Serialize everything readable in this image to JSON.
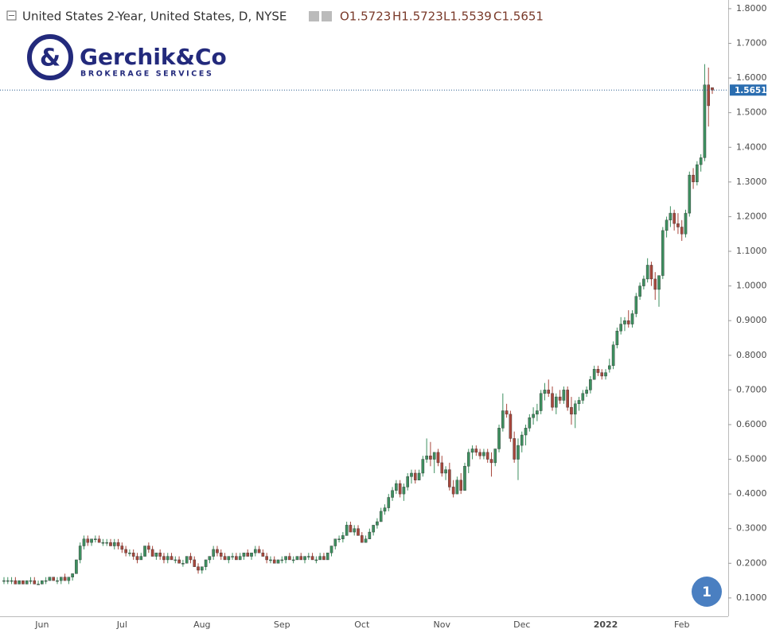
{
  "chart_data": {
    "type": "candlestick",
    "title": "United States 2-Year, United States, D, NYSE",
    "ohlc_labels": [
      "O1.5723",
      "H1.5723",
      "L1.5539",
      "C1.5651"
    ],
    "logo": {
      "name": "Gerchik&Co",
      "tagline": "BROKERAGE SERVICES"
    },
    "badge": "1",
    "up_color": "#3d8f5f",
    "down_color": "#a8473c",
    "ylim": [
      0.047,
      1.825
    ],
    "yticks": [
      {
        "value": 0.1,
        "label": "0.1000"
      },
      {
        "value": 0.2,
        "label": "0.2000"
      },
      {
        "value": 0.3,
        "label": "0.3000"
      },
      {
        "value": 0.4,
        "label": "0.4000"
      },
      {
        "value": 0.5,
        "label": "0.5000"
      },
      {
        "value": 0.6,
        "label": "0.6000"
      },
      {
        "value": 0.7,
        "label": "0.7000"
      },
      {
        "value": 0.8,
        "label": "0.8000"
      },
      {
        "value": 0.9,
        "label": "0.9000"
      },
      {
        "value": 1.0,
        "label": "1.0000"
      },
      {
        "value": 1.1,
        "label": "1.1000"
      },
      {
        "value": 1.2,
        "label": "1.2000"
      },
      {
        "value": 1.3,
        "label": "1.3000"
      },
      {
        "value": 1.4,
        "label": "1.4000"
      },
      {
        "value": 1.5,
        "label": "1.5000"
      },
      {
        "value": 1.6,
        "label": "1.6000"
      },
      {
        "value": 1.7,
        "label": "1.7000"
      },
      {
        "value": 1.8,
        "label": "1.8000"
      }
    ],
    "last_price": 1.5651,
    "categories": [
      null,
      null,
      null,
      null,
      null,
      null,
      null,
      null,
      null,
      null,
      "Jun",
      null,
      null,
      null,
      null,
      null,
      null,
      null,
      null,
      null,
      null,
      null,
      null,
      null,
      null,
      null,
      null,
      null,
      null,
      null,
      null,
      "Jul",
      null,
      null,
      null,
      null,
      null,
      null,
      null,
      null,
      null,
      null,
      null,
      null,
      null,
      null,
      null,
      null,
      null,
      null,
      null,
      null,
      "Aug",
      null,
      null,
      null,
      null,
      null,
      null,
      null,
      null,
      null,
      null,
      null,
      null,
      null,
      null,
      null,
      null,
      null,
      null,
      null,
      null,
      "Sep",
      null,
      null,
      null,
      null,
      null,
      null,
      null,
      null,
      null,
      null,
      null,
      null,
      null,
      null,
      null,
      null,
      null,
      null,
      null,
      null,
      "Oct",
      null,
      null,
      null,
      null,
      null,
      null,
      null,
      null,
      null,
      null,
      null,
      null,
      null,
      null,
      null,
      null,
      null,
      null,
      null,
      null,
      "Nov",
      null,
      null,
      null,
      null,
      null,
      null,
      null,
      null,
      null,
      null,
      null,
      null,
      null,
      null,
      null,
      null,
      null,
      null,
      null,
      null,
      "Dec",
      null,
      null,
      null,
      null,
      null,
      null,
      null,
      null,
      null,
      null,
      null,
      null,
      null,
      null,
      null,
      null,
      null,
      null,
      null,
      null,
      null,
      "2022",
      null,
      null,
      null,
      null,
      null,
      null,
      null,
      null,
      null,
      null,
      null,
      null,
      null,
      null,
      null,
      null,
      null,
      null,
      null,
      "Feb",
      null,
      null,
      null,
      null,
      null,
      null,
      null,
      null
    ],
    "candles": [
      [
        0.15,
        0.16,
        0.14,
        0.15
      ],
      [
        0.15,
        0.16,
        0.14,
        0.15
      ],
      [
        0.15,
        0.16,
        0.14,
        0.15
      ],
      [
        0.15,
        0.16,
        0.14,
        0.14
      ],
      [
        0.14,
        0.15,
        0.14,
        0.15
      ],
      [
        0.15,
        0.15,
        0.14,
        0.14
      ],
      [
        0.14,
        0.15,
        0.14,
        0.15
      ],
      [
        0.15,
        0.16,
        0.14,
        0.15
      ],
      [
        0.15,
        0.16,
        0.14,
        0.14
      ],
      [
        0.14,
        0.15,
        0.14,
        0.14
      ],
      [
        0.14,
        0.15,
        0.14,
        0.15
      ],
      [
        0.15,
        0.16,
        0.14,
        0.15
      ],
      [
        0.15,
        0.16,
        0.15,
        0.16
      ],
      [
        0.16,
        0.16,
        0.15,
        0.15
      ],
      [
        0.15,
        0.16,
        0.14,
        0.15
      ],
      [
        0.15,
        0.16,
        0.14,
        0.16
      ],
      [
        0.16,
        0.17,
        0.15,
        0.15
      ],
      [
        0.15,
        0.16,
        0.14,
        0.16
      ],
      [
        0.16,
        0.17,
        0.15,
        0.17
      ],
      [
        0.17,
        0.21,
        0.17,
        0.21
      ],
      [
        0.21,
        0.26,
        0.2,
        0.25
      ],
      [
        0.25,
        0.28,
        0.24,
        0.27
      ],
      [
        0.27,
        0.28,
        0.25,
        0.26
      ],
      [
        0.26,
        0.27,
        0.25,
        0.27
      ],
      [
        0.27,
        0.28,
        0.26,
        0.27
      ],
      [
        0.27,
        0.28,
        0.26,
        0.26
      ],
      [
        0.26,
        0.27,
        0.25,
        0.26
      ],
      [
        0.26,
        0.27,
        0.25,
        0.26
      ],
      [
        0.26,
        0.27,
        0.25,
        0.25
      ],
      [
        0.25,
        0.27,
        0.24,
        0.26
      ],
      [
        0.26,
        0.27,
        0.24,
        0.25
      ],
      [
        0.25,
        0.26,
        0.23,
        0.24
      ],
      [
        0.24,
        0.25,
        0.22,
        0.23
      ],
      [
        0.23,
        0.24,
        0.22,
        0.23
      ],
      [
        0.23,
        0.24,
        0.21,
        0.22
      ],
      [
        0.22,
        0.23,
        0.2,
        0.21
      ],
      [
        0.21,
        0.23,
        0.21,
        0.22
      ],
      [
        0.22,
        0.25,
        0.22,
        0.25
      ],
      [
        0.25,
        0.26,
        0.23,
        0.24
      ],
      [
        0.24,
        0.25,
        0.22,
        0.22
      ],
      [
        0.22,
        0.23,
        0.21,
        0.23
      ],
      [
        0.23,
        0.24,
        0.21,
        0.22
      ],
      [
        0.22,
        0.23,
        0.2,
        0.21
      ],
      [
        0.21,
        0.23,
        0.2,
        0.22
      ],
      [
        0.22,
        0.23,
        0.21,
        0.21
      ],
      [
        0.21,
        0.22,
        0.2,
        0.21
      ],
      [
        0.21,
        0.22,
        0.2,
        0.2
      ],
      [
        0.2,
        0.21,
        0.19,
        0.2
      ],
      [
        0.2,
        0.22,
        0.2,
        0.22
      ],
      [
        0.22,
        0.23,
        0.2,
        0.21
      ],
      [
        0.21,
        0.22,
        0.19,
        0.19
      ],
      [
        0.19,
        0.2,
        0.17,
        0.18
      ],
      [
        0.18,
        0.19,
        0.17,
        0.19
      ],
      [
        0.19,
        0.21,
        0.18,
        0.21
      ],
      [
        0.21,
        0.22,
        0.2,
        0.22
      ],
      [
        0.22,
        0.25,
        0.21,
        0.24
      ],
      [
        0.24,
        0.25,
        0.22,
        0.23
      ],
      [
        0.23,
        0.24,
        0.21,
        0.22
      ],
      [
        0.22,
        0.23,
        0.21,
        0.21
      ],
      [
        0.21,
        0.22,
        0.2,
        0.22
      ],
      [
        0.22,
        0.23,
        0.21,
        0.22
      ],
      [
        0.22,
        0.23,
        0.21,
        0.21
      ],
      [
        0.21,
        0.23,
        0.21,
        0.22
      ],
      [
        0.22,
        0.23,
        0.21,
        0.23
      ],
      [
        0.23,
        0.24,
        0.22,
        0.22
      ],
      [
        0.22,
        0.23,
        0.21,
        0.23
      ],
      [
        0.23,
        0.25,
        0.22,
        0.24
      ],
      [
        0.24,
        0.25,
        0.23,
        0.23
      ],
      [
        0.23,
        0.24,
        0.22,
        0.22
      ],
      [
        0.22,
        0.23,
        0.2,
        0.21
      ],
      [
        0.21,
        0.22,
        0.2,
        0.21
      ],
      [
        0.21,
        0.22,
        0.2,
        0.2
      ],
      [
        0.2,
        0.21,
        0.2,
        0.21
      ],
      [
        0.21,
        0.22,
        0.2,
        0.21
      ],
      [
        0.21,
        0.22,
        0.2,
        0.22
      ],
      [
        0.22,
        0.23,
        0.21,
        0.21
      ],
      [
        0.21,
        0.22,
        0.2,
        0.21
      ],
      [
        0.21,
        0.22,
        0.21,
        0.22
      ],
      [
        0.22,
        0.23,
        0.21,
        0.21
      ],
      [
        0.21,
        0.22,
        0.2,
        0.22
      ],
      [
        0.22,
        0.23,
        0.21,
        0.22
      ],
      [
        0.22,
        0.23,
        0.21,
        0.21
      ],
      [
        0.21,
        0.22,
        0.2,
        0.21
      ],
      [
        0.21,
        0.23,
        0.21,
        0.22
      ],
      [
        0.22,
        0.23,
        0.21,
        0.21
      ],
      [
        0.21,
        0.23,
        0.21,
        0.23
      ],
      [
        0.23,
        0.25,
        0.22,
        0.25
      ],
      [
        0.25,
        0.27,
        0.24,
        0.27
      ],
      [
        0.27,
        0.28,
        0.26,
        0.27
      ],
      [
        0.27,
        0.29,
        0.26,
        0.28
      ],
      [
        0.28,
        0.32,
        0.28,
        0.31
      ],
      [
        0.31,
        0.32,
        0.29,
        0.29
      ],
      [
        0.29,
        0.31,
        0.28,
        0.3
      ],
      [
        0.3,
        0.31,
        0.28,
        0.28
      ],
      [
        0.28,
        0.29,
        0.26,
        0.26
      ],
      [
        0.26,
        0.28,
        0.26,
        0.27
      ],
      [
        0.27,
        0.3,
        0.27,
        0.29
      ],
      [
        0.29,
        0.31,
        0.28,
        0.31
      ],
      [
        0.31,
        0.33,
        0.3,
        0.32
      ],
      [
        0.32,
        0.36,
        0.32,
        0.35
      ],
      [
        0.35,
        0.37,
        0.34,
        0.36
      ],
      [
        0.36,
        0.4,
        0.35,
        0.39
      ],
      [
        0.39,
        0.42,
        0.38,
        0.41
      ],
      [
        0.41,
        0.44,
        0.4,
        0.43
      ],
      [
        0.43,
        0.44,
        0.39,
        0.4
      ],
      [
        0.4,
        0.43,
        0.38,
        0.42
      ],
      [
        0.42,
        0.46,
        0.41,
        0.45
      ],
      [
        0.45,
        0.47,
        0.43,
        0.46
      ],
      [
        0.46,
        0.47,
        0.43,
        0.44
      ],
      [
        0.44,
        0.47,
        0.44,
        0.46
      ],
      [
        0.46,
        0.51,
        0.45,
        0.5
      ],
      [
        0.5,
        0.56,
        0.49,
        0.51
      ],
      [
        0.51,
        0.55,
        0.48,
        0.5
      ],
      [
        0.5,
        0.52,
        0.46,
        0.52
      ],
      [
        0.52,
        0.53,
        0.48,
        0.49
      ],
      [
        0.49,
        0.51,
        0.45,
        0.46
      ],
      [
        0.46,
        0.48,
        0.44,
        0.47
      ],
      [
        0.47,
        0.49,
        0.41,
        0.42
      ],
      [
        0.42,
        0.44,
        0.39,
        0.4
      ],
      [
        0.4,
        0.45,
        0.4,
        0.44
      ],
      [
        0.44,
        0.46,
        0.4,
        0.41
      ],
      [
        0.41,
        0.49,
        0.41,
        0.48
      ],
      [
        0.48,
        0.53,
        0.46,
        0.52
      ],
      [
        0.52,
        0.54,
        0.5,
        0.53
      ],
      [
        0.53,
        0.54,
        0.51,
        0.52
      ],
      [
        0.52,
        0.53,
        0.5,
        0.51
      ],
      [
        0.51,
        0.53,
        0.5,
        0.52
      ],
      [
        0.52,
        0.53,
        0.49,
        0.5
      ],
      [
        0.5,
        0.52,
        0.45,
        0.49
      ],
      [
        0.49,
        0.53,
        0.48,
        0.53
      ],
      [
        0.53,
        0.6,
        0.52,
        0.59
      ],
      [
        0.59,
        0.69,
        0.58,
        0.64
      ],
      [
        0.64,
        0.66,
        0.62,
        0.63
      ],
      [
        0.63,
        0.64,
        0.55,
        0.56
      ],
      [
        0.56,
        0.58,
        0.49,
        0.5
      ],
      [
        0.5,
        0.56,
        0.44,
        0.54
      ],
      [
        0.54,
        0.58,
        0.52,
        0.57
      ],
      [
        0.57,
        0.6,
        0.54,
        0.59
      ],
      [
        0.59,
        0.63,
        0.58,
        0.62
      ],
      [
        0.62,
        0.65,
        0.6,
        0.63
      ],
      [
        0.63,
        0.66,
        0.61,
        0.64
      ],
      [
        0.64,
        0.7,
        0.63,
        0.69
      ],
      [
        0.69,
        0.72,
        0.67,
        0.7
      ],
      [
        0.7,
        0.73,
        0.68,
        0.69
      ],
      [
        0.69,
        0.71,
        0.64,
        0.65
      ],
      [
        0.65,
        0.69,
        0.63,
        0.68
      ],
      [
        0.68,
        0.7,
        0.66,
        0.67
      ],
      [
        0.67,
        0.71,
        0.66,
        0.7
      ],
      [
        0.7,
        0.71,
        0.64,
        0.65
      ],
      [
        0.65,
        0.68,
        0.6,
        0.63
      ],
      [
        0.63,
        0.67,
        0.59,
        0.66
      ],
      [
        0.66,
        0.68,
        0.64,
        0.67
      ],
      [
        0.67,
        0.7,
        0.66,
        0.69
      ],
      [
        0.69,
        0.71,
        0.68,
        0.7
      ],
      [
        0.7,
        0.74,
        0.69,
        0.73
      ],
      [
        0.73,
        0.77,
        0.73,
        0.76
      ],
      [
        0.76,
        0.77,
        0.74,
        0.75
      ],
      [
        0.75,
        0.76,
        0.73,
        0.74
      ],
      [
        0.74,
        0.76,
        0.73,
        0.75
      ],
      [
        0.76,
        0.79,
        0.75,
        0.77
      ],
      [
        0.77,
        0.84,
        0.76,
        0.83
      ],
      [
        0.83,
        0.88,
        0.82,
        0.87
      ],
      [
        0.87,
        0.91,
        0.86,
        0.89
      ],
      [
        0.89,
        0.91,
        0.87,
        0.9
      ],
      [
        0.9,
        0.93,
        0.88,
        0.89
      ],
      [
        0.89,
        0.93,
        0.88,
        0.92
      ],
      [
        0.92,
        0.98,
        0.91,
        0.97
      ],
      [
        0.97,
        1.01,
        0.96,
        1.0
      ],
      [
        1.0,
        1.03,
        0.99,
        1.02
      ],
      [
        1.02,
        1.08,
        1.01,
        1.06
      ],
      [
        1.06,
        1.07,
        1.0,
        1.02
      ],
      [
        1.02,
        1.04,
        0.96,
        0.99
      ],
      [
        0.99,
        1.02,
        0.94,
        1.03
      ],
      [
        1.03,
        1.17,
        1.02,
        1.16
      ],
      [
        1.16,
        1.2,
        1.14,
        1.19
      ],
      [
        1.19,
        1.23,
        1.17,
        1.21
      ],
      [
        1.21,
        1.22,
        1.16,
        1.18
      ],
      [
        1.18,
        1.21,
        1.15,
        1.17
      ],
      [
        1.17,
        1.19,
        1.13,
        1.15
      ],
      [
        1.15,
        1.22,
        1.14,
        1.21
      ],
      [
        1.21,
        1.33,
        1.2,
        1.32
      ],
      [
        1.32,
        1.34,
        1.28,
        1.3
      ],
      [
        1.3,
        1.36,
        1.29,
        1.35
      ],
      [
        1.35,
        1.38,
        1.33,
        1.37
      ],
      [
        1.37,
        1.64,
        1.36,
        1.58
      ],
      [
        1.58,
        1.63,
        1.46,
        1.52
      ],
      [
        1.5723,
        1.5723,
        1.5539,
        1.5651
      ]
    ]
  }
}
